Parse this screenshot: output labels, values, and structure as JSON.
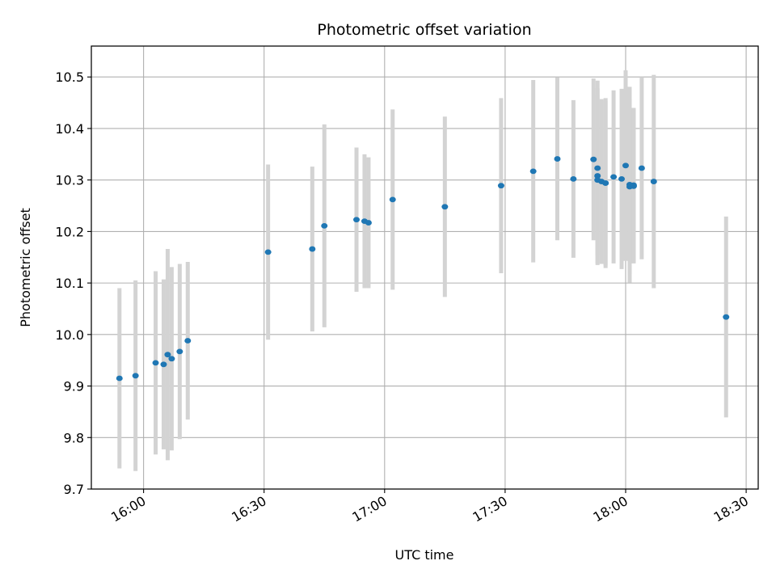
{
  "chart_data": {
    "type": "scatter",
    "title": "Photometric offset variation",
    "xlabel": "UTC time",
    "ylabel": "Photometric offset",
    "xlim": [
      "15:47",
      "18:33"
    ],
    "ylim": [
      9.7,
      10.56
    ],
    "x_ticks": [
      "16:00",
      "16:30",
      "17:00",
      "17:30",
      "18:00",
      "18:30"
    ],
    "y_ticks": [
      9.7,
      9.8,
      9.9,
      10.0,
      10.1,
      10.2,
      10.3,
      10.4,
      10.5
    ],
    "y_tick_labels": [
      "9.7",
      "9.8",
      "9.9",
      "10.0",
      "10.1",
      "10.2",
      "10.3",
      "10.4",
      "10.5"
    ],
    "grid": true,
    "colors": {
      "points": "#1f77b4",
      "errorbars": "#d3d3d3",
      "grid": "#b0b0b0"
    },
    "points": [
      {
        "t": "15:54",
        "y": 9.915,
        "err": 0.175
      },
      {
        "t": "15:58",
        "y": 9.92,
        "err": 0.185
      },
      {
        "t": "16:03",
        "y": 9.945,
        "err": 0.178
      },
      {
        "t": "16:05",
        "y": 9.942,
        "err": 0.165
      },
      {
        "t": "16:06",
        "y": 9.961,
        "err": 0.205
      },
      {
        "t": "16:07",
        "y": 9.953,
        "err": 0.178
      },
      {
        "t": "16:09",
        "y": 9.967,
        "err": 0.17
      },
      {
        "t": "16:11",
        "y": 9.988,
        "err": 0.153
      },
      {
        "t": "16:31",
        "y": 10.16,
        "err": 0.17
      },
      {
        "t": "16:42",
        "y": 10.166,
        "err": 0.16
      },
      {
        "t": "16:45",
        "y": 10.211,
        "err": 0.197
      },
      {
        "t": "16:53",
        "y": 10.223,
        "err": 0.14
      },
      {
        "t": "16:55",
        "y": 10.22,
        "err": 0.13
      },
      {
        "t": "16:56",
        "y": 10.217,
        "err": 0.127
      },
      {
        "t": "17:02",
        "y": 10.262,
        "err": 0.175
      },
      {
        "t": "17:15",
        "y": 10.248,
        "err": 0.175
      },
      {
        "t": "17:29",
        "y": 10.289,
        "err": 0.17
      },
      {
        "t": "17:37",
        "y": 10.317,
        "err": 0.177
      },
      {
        "t": "17:43",
        "y": 10.341,
        "err": 0.158
      },
      {
        "t": "17:47",
        "y": 10.302,
        "err": 0.153
      },
      {
        "t": "17:52",
        "y": 10.34,
        "err": 0.157
      },
      {
        "t": "17:53",
        "y": 10.323,
        "err": 0.17
      },
      {
        "t": "17:53",
        "y": 10.308,
        "err": 0.17
      },
      {
        "t": "17:53",
        "y": 10.3,
        "err": 0.165
      },
      {
        "t": "17:54",
        "y": 10.297,
        "err": 0.16
      },
      {
        "t": "17:55",
        "y": 10.294,
        "err": 0.165
      },
      {
        "t": "17:55",
        "y": 10.294,
        "err": 0.16
      },
      {
        "t": "17:57",
        "y": 10.306,
        "err": 0.168
      },
      {
        "t": "17:59",
        "y": 10.302,
        "err": 0.175
      },
      {
        "t": "18:00",
        "y": 10.328,
        "err": 0.185
      },
      {
        "t": "18:01",
        "y": 10.291,
        "err": 0.19
      },
      {
        "t": "18:01",
        "y": 10.287,
        "err": 0.17
      },
      {
        "t": "18:02",
        "y": 10.288,
        "err": 0.15
      },
      {
        "t": "18:02",
        "y": 10.29,
        "err": 0.15
      },
      {
        "t": "18:04",
        "y": 10.323,
        "err": 0.177
      },
      {
        "t": "18:07",
        "y": 10.297,
        "err": 0.207
      },
      {
        "t": "18:25",
        "y": 10.034,
        "err": 0.195
      }
    ]
  }
}
